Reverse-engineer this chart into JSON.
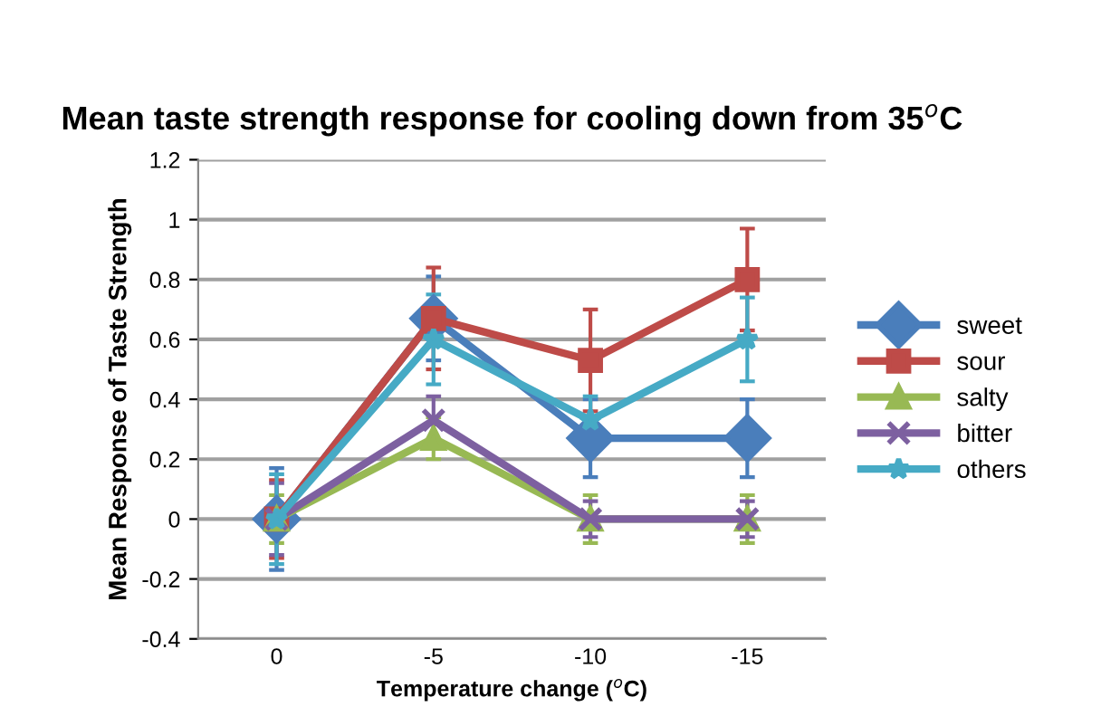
{
  "chart_data": {
    "type": "line",
    "title": "Mean taste strength response for cooling down from 35$^{o}$C",
    "xlabel": "Temperature change ($^{o}$C)",
    "ylabel": "Mean Response of Taste Strength",
    "categories": [
      "0",
      "-5",
      "-10",
      "-15"
    ],
    "series": [
      {
        "name": "sweet",
        "color": "#4a7ebb",
        "marker": "diamond",
        "values": [
          0,
          0.67,
          0.27,
          0.27
        ],
        "errors": [
          0.17,
          0.14,
          0.13,
          0.13
        ]
      },
      {
        "name": "sour",
        "color": "#be4b48",
        "marker": "square",
        "values": [
          0,
          0.67,
          0.53,
          0.8
        ],
        "errors": [
          0.13,
          0.17,
          0.17,
          0.17
        ]
      },
      {
        "name": "salty",
        "color": "#98b954",
        "marker": "triangle",
        "values": [
          0,
          0.27,
          0,
          0
        ],
        "errors": [
          0.08,
          0.07,
          0.08,
          0.08
        ]
      },
      {
        "name": "bitter",
        "color": "#7d60a0",
        "marker": "cross",
        "values": [
          0,
          0.33,
          0,
          0
        ],
        "errors": [
          0.12,
          0.08,
          0.06,
          0.06
        ]
      },
      {
        "name": "others",
        "color": "#46aac5",
        "marker": "star",
        "values": [
          0,
          0.6,
          0.33,
          0.6
        ],
        "errors": [
          0.15,
          0.15,
          0.08,
          0.14
        ]
      }
    ],
    "ylim": [
      -0.4,
      1.2
    ],
    "yticks": [
      -0.4,
      -0.2,
      0,
      0.2,
      0.4,
      0.6,
      0.8,
      1,
      1.2
    ],
    "grid": "y",
    "legend": "right"
  }
}
